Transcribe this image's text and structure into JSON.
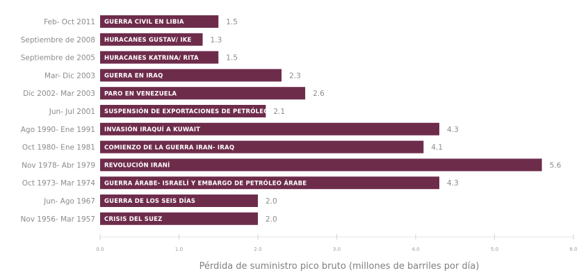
{
  "chart_data": {
    "type": "bar",
    "orientation": "horizontal",
    "xlabel": "Pérdida de suministro pico bruto (millones de barriles por día)",
    "xlim": [
      0,
      6
    ],
    "x_ticks": [
      0,
      1,
      2,
      3,
      4,
      5,
      6
    ],
    "x_tick_labels": [
      "0.0",
      "1.0",
      "2.0",
      "3.0",
      "4.0",
      "5.0",
      "6.0"
    ],
    "grid": false,
    "bar_color": "#6e2c4b",
    "categories": [
      "Feb- Oct 2011",
      "Septiembre de 2008",
      "Septiembre de 2005",
      "Mar- Dic 2003",
      "Dic 2002- Mar 2003",
      "Jun- Jul 2001",
      "Ago 1990- Ene 1991",
      "Oct 1980- Ene 1981",
      "Nov 1978- Abr 1979",
      "Oct 1973- Mar 1974",
      "Jun- Ago 1967",
      "Nov 1956- Mar 1957"
    ],
    "events": [
      "GUERRA CIVIL EN LIBIA",
      "HURACANES GUSTAV/ IKE",
      "HURACANES KATRINA/ RITA",
      "GUERRA EN IRAQ",
      "PARO EN VENEZUELA",
      "SUSPENSIÓN DE EXPORTACIONES DE PETRÓLEO DE IRAQ",
      "INVASIÓN IRAQUÍ A KUWAIT",
      "COMIENZO DE LA GUERRA IRAN- IRAQ",
      "REVOLUCIÓN IRANÍ",
      "GUERRA ÁRABE- ISRAELÍ Y EMBARGO DE PETRÓLEO ÁRABE",
      "GUERRA DE LOS SEIS DÍAS",
      "CRISIS DEL SUEZ"
    ],
    "values": [
      1.5,
      1.3,
      1.5,
      2.3,
      2.6,
      2.1,
      4.3,
      4.1,
      5.6,
      4.3,
      2.0,
      2.0
    ],
    "value_labels": [
      "1.5",
      "1.3",
      "1.5",
      "2.3",
      "2.6",
      "2.1",
      "4.3",
      "4.1",
      "5.6",
      "4.3",
      "2.0",
      "2.0"
    ]
  }
}
